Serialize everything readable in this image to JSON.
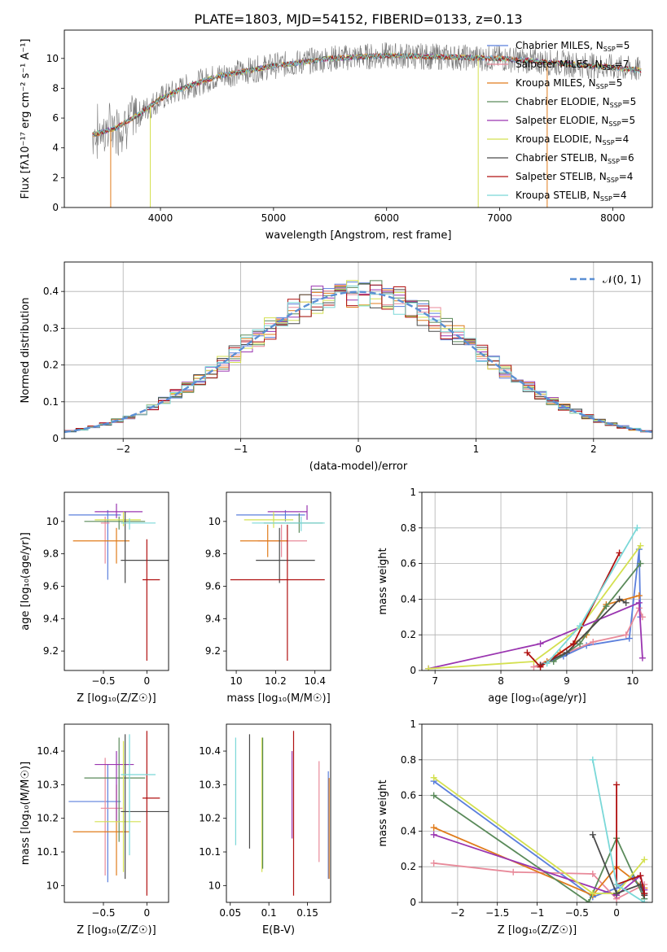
{
  "figure_title": "PLATE=1803, MJD=54152, FIBERID=0133, z=0.13",
  "colors": {
    "Chabrier MILES": "#5b7fdc",
    "Salpeter MILES": "#e88a9a",
    "Kroupa MILES": "#e07c1c",
    "Chabrier ELODIE": "#5a8a5a",
    "Salpeter ELODIE": "#9a35b0",
    "Kroupa ELODIE": "#d4e050",
    "Chabrier STELIB": "#4a4a4a",
    "Salpeter STELIB": "#b01010",
    "Kroupa STELIB": "#7ad8d8"
  },
  "chart_data": [
    {
      "type": "line",
      "id": "spectrum",
      "xlabel": "wavelength [Angstrom, rest frame]",
      "ylabel": "Flux [fλ10⁻¹⁷ erg cm⁻² s⁻¹ A⁻¹]",
      "xlim": [
        3150,
        8350
      ],
      "ylim": [
        0,
        11.9
      ],
      "xticks": [
        4000,
        5000,
        6000,
        7000,
        8000
      ],
      "yticks": [
        0,
        2,
        4,
        6,
        8,
        10
      ],
      "grid": false,
      "legend_position": "right",
      "legend": [
        {
          "name": "Chabrier MILES",
          "nssp": "5"
        },
        {
          "name": "Salpeter MILES",
          "nssp": "7"
        },
        {
          "name": "Kroupa MILES",
          "nssp": "5"
        },
        {
          "name": "Chabrier ELODIE",
          "nssp": "5"
        },
        {
          "name": "Salpeter ELODIE",
          "nssp": "5"
        },
        {
          "name": "Kroupa ELODIE",
          "nssp": "4"
        },
        {
          "name": "Chabrier STELIB",
          "nssp": "6"
        },
        {
          "name": "Salpeter STELIB",
          "nssp": "4"
        },
        {
          "name": "Kroupa STELIB",
          "nssp": "4"
        }
      ],
      "continuum": {
        "x": [
          3400,
          3600,
          3800,
          4000,
          4200,
          4500,
          5000,
          5500,
          6000,
          6500,
          7000,
          7500,
          8000,
          8250
        ],
        "y": [
          4.9,
          5.3,
          6.2,
          7.3,
          8.0,
          8.8,
          9.5,
          10.0,
          10.2,
          10.1,
          10.0,
          9.7,
          9.4,
          9.2
        ]
      }
    },
    {
      "type": "histogram",
      "id": "residuals",
      "xlabel": "(data-model)/error",
      "ylabel": "Normed distribution",
      "xlim": [
        -2.5,
        2.5
      ],
      "ylim": [
        0,
        0.48
      ],
      "xticks": [
        -2,
        -1,
        0,
        1,
        2
      ],
      "yticks": [
        0.0,
        0.1,
        0.2,
        0.3,
        0.4
      ],
      "grid": true,
      "reference_curve": {
        "label": "𝒩(0, 1)",
        "mean": 0,
        "sigma": 1
      },
      "bin_edges_start": -2.5,
      "bin_width": 0.1
    },
    {
      "type": "errorbar",
      "id": "age-vs-Z",
      "xlabel": "Z [log₁₀(Z/Z☉)]",
      "ylabel": "age  [log₁₀(age/yr)]",
      "xlim": [
        -0.95,
        0.25
      ],
      "ylim": [
        9.08,
        10.18
      ],
      "xticks": [
        -0.5,
        0.0
      ],
      "yticks": [
        9.2,
        9.4,
        9.6,
        9.8,
        10.0
      ],
      "points": [
        {
          "series": "Chabrier MILES",
          "x": -0.45,
          "xerr": [
            0.45,
            0.15
          ],
          "y": 10.04,
          "yerr": [
            0.4,
            0.03
          ]
        },
        {
          "series": "Salpeter MILES",
          "x": -0.48,
          "xerr": [
            0.05,
            0.05
          ],
          "y": 9.99,
          "yerr": [
            0.25,
            0.04
          ]
        },
        {
          "series": "Kroupa MILES",
          "x": -0.35,
          "xerr": [
            0.5,
            0.15
          ],
          "y": 9.88,
          "yerr": [
            0.14,
            0.08
          ]
        },
        {
          "series": "Chabrier ELODIE",
          "x": -0.32,
          "xerr": [
            0.4,
            0.3
          ],
          "y": 10.0,
          "yerr": [
            0.05,
            0.03
          ]
        },
        {
          "series": "Salpeter ELODIE",
          "x": -0.35,
          "xerr": [
            0.25,
            0.3
          ],
          "y": 10.06,
          "yerr": [
            0.04,
            0.05
          ]
        },
        {
          "series": "Kroupa ELODIE",
          "x": -0.27,
          "xerr": [
            0.33,
            0.2
          ],
          "y": 10.01,
          "yerr": [
            0.04,
            0.05
          ]
        },
        {
          "series": "Chabrier STELIB",
          "x": -0.25,
          "xerr": [
            0.05,
            0.5
          ],
          "y": 9.76,
          "yerr": [
            0.14,
            0.3
          ]
        },
        {
          "series": "Salpeter STELIB",
          "x": 0.0,
          "xerr": [
            0.05,
            0.15
          ],
          "y": 9.64,
          "yerr": [
            0.5,
            0.25
          ]
        },
        {
          "series": "Kroupa STELIB",
          "x": -0.2,
          "xerr": [
            0.1,
            0.3
          ],
          "y": 9.99,
          "yerr": [
            0.04,
            0.03
          ]
        }
      ]
    },
    {
      "type": "errorbar",
      "id": "age-vs-mass",
      "xlabel": "mass [log₁₀(M/M☉)]",
      "ylabel": "",
      "xlim": [
        9.95,
        10.48
      ],
      "ylim": [
        9.08,
        10.18
      ],
      "xticks": [
        10.0,
        10.2,
        10.4
      ],
      "yticks": [
        9.2,
        9.4,
        9.6,
        9.8,
        10.0
      ],
      "points": [
        {
          "series": "Chabrier MILES",
          "x": 10.25,
          "xerr": [
            0.25,
            0.1
          ],
          "y": 10.04,
          "yerr": [
            0.04,
            0.03
          ]
        },
        {
          "series": "Salpeter MILES",
          "x": 10.23,
          "xerr": [
            0.12,
            0.13
          ],
          "y": 9.88,
          "yerr": [
            0.1,
            0.1
          ]
        },
        {
          "series": "Kroupa MILES",
          "x": 10.16,
          "xerr": [
            0.14,
            0.1
          ],
          "y": 9.88,
          "yerr": [
            0.1,
            0.1
          ]
        },
        {
          "series": "Chabrier ELODIE",
          "x": 10.32,
          "xerr": [
            0.18,
            0.12
          ],
          "y": 9.99,
          "yerr": [
            0.06,
            0.06
          ]
        },
        {
          "series": "Salpeter ELODIE",
          "x": 10.36,
          "xerr": [
            0.2,
            0.0
          ],
          "y": 10.06,
          "yerr": [
            0.05,
            0.04
          ]
        },
        {
          "series": "Kroupa ELODIE",
          "x": 10.19,
          "xerr": [
            0.15,
            0.1
          ],
          "y": 10.01,
          "yerr": [
            0.05,
            0.05
          ]
        },
        {
          "series": "Chabrier STELIB",
          "x": 10.22,
          "xerr": [
            0.12,
            0.18
          ],
          "y": 9.76,
          "yerr": [
            0.14,
            0.2
          ]
        },
        {
          "series": "Salpeter STELIB",
          "x": 10.26,
          "xerr": [
            0.29,
            0.19
          ],
          "y": 9.64,
          "yerr": [
            0.5,
            0.34
          ]
        },
        {
          "series": "Kroupa STELIB",
          "x": 10.33,
          "xerr": [
            0.25,
            0.12
          ],
          "y": 9.99,
          "yerr": [
            0.05,
            0.04
          ]
        }
      ]
    },
    {
      "type": "line",
      "id": "mass-weight-vs-age",
      "xlabel": "age  [log₁₀(age/yr)]",
      "ylabel": "mass weight",
      "xlim": [
        6.8,
        10.3
      ],
      "ylim": [
        0,
        1.0
      ],
      "xticks": [
        7,
        8,
        9,
        10
      ],
      "yticks": [
        0.0,
        0.2,
        0.4,
        0.6,
        0.8,
        1.0
      ],
      "grid": true,
      "series": [
        {
          "name": "Chabrier MILES",
          "x": [
            8.6,
            8.95,
            9.3,
            9.95,
            10.1,
            10.12
          ],
          "y": [
            0.03,
            0.08,
            0.14,
            0.18,
            0.68,
            0.3
          ]
        },
        {
          "name": "Salpeter MILES",
          "x": [
            8.5,
            8.8,
            9.4,
            9.9,
            10.1,
            10.15
          ],
          "y": [
            0.02,
            0.07,
            0.16,
            0.2,
            0.35,
            0.3
          ]
        },
        {
          "name": "Kroupa MILES",
          "x": [
            8.7,
            8.9,
            9.3,
            9.6,
            10.1
          ],
          "y": [
            0.05,
            0.1,
            0.2,
            0.37,
            0.42
          ]
        },
        {
          "name": "Chabrier ELODIE",
          "x": [
            8.8,
            9.2,
            9.6,
            10.12
          ],
          "y": [
            0.05,
            0.15,
            0.36,
            0.6
          ]
        },
        {
          "name": "Salpeter ELODIE",
          "x": [
            6.9,
            8.6,
            10.1,
            10.15
          ],
          "y": [
            0.01,
            0.15,
            0.38,
            0.07
          ]
        },
        {
          "name": "Kroupa ELODIE",
          "x": [
            6.9,
            8.5,
            9.2,
            10.12
          ],
          "y": [
            0.01,
            0.05,
            0.24,
            0.7
          ]
        },
        {
          "name": "Chabrier STELIB",
          "x": [
            8.6,
            9.0,
            9.8,
            9.9
          ],
          "y": [
            0.03,
            0.1,
            0.4,
            0.38
          ]
        },
        {
          "name": "Salpeter STELIB",
          "x": [
            8.4,
            8.6,
            9.1,
            9.8
          ],
          "y": [
            0.1,
            0.02,
            0.15,
            0.66
          ]
        },
        {
          "name": "Kroupa STELIB",
          "x": [
            8.7,
            9.2,
            10.07
          ],
          "y": [
            0.04,
            0.25,
            0.8
          ]
        }
      ]
    },
    {
      "type": "errorbar",
      "id": "mass-vs-Z",
      "xlabel": "Z [log₁₀(Z/Z☉)]",
      "ylabel": "mass [log₁₀(M/M☉)]",
      "xlim": [
        -0.95,
        0.25
      ],
      "ylim": [
        9.95,
        10.48
      ],
      "xticks": [
        -0.5,
        0.0
      ],
      "yticks": [
        10.0,
        10.1,
        10.2,
        10.3,
        10.4
      ],
      "points": [
        {
          "series": "Chabrier MILES",
          "x": -0.45,
          "xerr": [
            0.45,
            0.15
          ],
          "y": 10.25,
          "yerr": [
            0.24,
            0.11
          ]
        },
        {
          "series": "Salpeter MILES",
          "x": -0.48,
          "xerr": [
            0.05,
            0.2
          ],
          "y": 10.23,
          "yerr": [
            0.2,
            0.15
          ]
        },
        {
          "series": "Kroupa MILES",
          "x": -0.35,
          "xerr": [
            0.5,
            0.15
          ],
          "y": 10.16,
          "yerr": [
            0.13,
            0.14
          ]
        },
        {
          "series": "Chabrier ELODIE",
          "x": -0.32,
          "xerr": [
            0.4,
            0.3
          ],
          "y": 10.32,
          "yerr": [
            0.19,
            0.12
          ]
        },
        {
          "series": "Salpeter ELODIE",
          "x": -0.35,
          "xerr": [
            0.25,
            0.2
          ],
          "y": 10.36,
          "yerr": [
            0.17,
            0.04
          ]
        },
        {
          "series": "Kroupa ELODIE",
          "x": -0.27,
          "xerr": [
            0.33,
            0.2
          ],
          "y": 10.19,
          "yerr": [
            0.15,
            0.24
          ]
        },
        {
          "series": "Chabrier STELIB",
          "x": -0.25,
          "xerr": [
            0.05,
            0.5
          ],
          "y": 10.22,
          "yerr": [
            0.2,
            0.23
          ]
        },
        {
          "series": "Salpeter STELIB",
          "x": 0.0,
          "xerr": [
            0.05,
            0.15
          ],
          "y": 10.26,
          "yerr": [
            0.29,
            0.2
          ]
        },
        {
          "series": "Kroupa STELIB",
          "x": -0.2,
          "xerr": [
            0.1,
            0.3
          ],
          "y": 10.33,
          "yerr": [
            0.24,
            0.12
          ]
        }
      ]
    },
    {
      "type": "errorbar",
      "id": "mass-vs-ebv",
      "xlabel": "E(B-V)",
      "ylabel": "",
      "xlim": [
        0.045,
        0.18
      ],
      "ylim": [
        9.95,
        10.48
      ],
      "xticks": [
        0.05,
        0.1,
        0.15
      ],
      "yticks": [
        10.0,
        10.1,
        10.2,
        10.3,
        10.4
      ],
      "points": [
        {
          "series": "Kroupa STELIB",
          "x": 0.057,
          "y": 10.29,
          "yerr": [
            0.17,
            0.15
          ]
        },
        {
          "series": "Chabrier STELIB",
          "x": 0.075,
          "y": 10.28,
          "yerr": [
            0.17,
            0.17
          ]
        },
        {
          "series": "Kroupa ELODIE",
          "x": 0.091,
          "y": 10.24,
          "yerr": [
            0.2,
            0.2
          ]
        },
        {
          "series": "Chabrier ELODIE",
          "x": 0.092,
          "y": 10.25,
          "yerr": [
            0.2,
            0.19
          ]
        },
        {
          "series": "Salpeter ELODIE",
          "x": 0.13,
          "y": 10.27,
          "yerr": [
            0.13,
            0.13
          ]
        },
        {
          "series": "Salpeter STELIB",
          "x": 0.132,
          "y": 10.26,
          "yerr": [
            0.29,
            0.2
          ]
        },
        {
          "series": "Salpeter MILES",
          "x": 0.165,
          "y": 10.22,
          "yerr": [
            0.15,
            0.15
          ]
        },
        {
          "series": "Chabrier MILES",
          "x": 0.177,
          "y": 10.18,
          "yerr": [
            0.16,
            0.16
          ]
        },
        {
          "series": "Kroupa MILES",
          "x": 0.178,
          "y": 10.17,
          "yerr": [
            0.15,
            0.15
          ]
        }
      ]
    },
    {
      "type": "line",
      "id": "mass-weight-vs-Z",
      "xlabel": "Z [log₁₀(Z/Z☉)]",
      "ylabel": "mass weight",
      "xlim": [
        -2.45,
        0.45
      ],
      "ylim": [
        0,
        1.0
      ],
      "xticks": [
        -2.0,
        -1.5,
        -1.0,
        -0.5,
        0.0
      ],
      "yticks": [
        0.0,
        0.2,
        0.4,
        0.6,
        0.8,
        1.0
      ],
      "grid": true,
      "series": [
        {
          "name": "Chabrier MILES",
          "x": [
            -2.3,
            -0.3,
            0.0,
            0.2,
            0.35
          ],
          "y": [
            0.68,
            0.03,
            0.08,
            0.14,
            0.05
          ]
        },
        {
          "name": "Salpeter MILES",
          "x": [
            -2.3,
            -1.3,
            -0.3,
            0.0,
            0.35
          ],
          "y": [
            0.22,
            0.17,
            0.16,
            0.02,
            0.1
          ]
        },
        {
          "name": "Kroupa MILES",
          "x": [
            -2.3,
            -0.3,
            0.0,
            0.35
          ],
          "y": [
            0.42,
            0.04,
            0.2,
            0.08
          ]
        },
        {
          "name": "Chabrier ELODIE",
          "x": [
            -2.3,
            -0.35,
            0.0,
            0.35
          ],
          "y": [
            0.6,
            0.0,
            0.36,
            0.02
          ]
        },
        {
          "name": "Salpeter ELODIE",
          "x": [
            -2.3,
            0.0,
            0.3,
            0.35
          ],
          "y": [
            0.38,
            0.04,
            0.15,
            0.07
          ]
        },
        {
          "name": "Kroupa ELODIE",
          "x": [
            -2.3,
            -0.3,
            0.0,
            0.35
          ],
          "y": [
            0.7,
            0.05,
            0.05,
            0.24
          ]
        },
        {
          "name": "Chabrier STELIB",
          "x": [
            -0.3,
            0.0,
            0.3,
            0.35
          ],
          "y": [
            0.38,
            0.05,
            0.1,
            0.04
          ]
        },
        {
          "name": "Salpeter STELIB",
          "x": [
            0.0,
            0.0,
            0.3,
            0.35
          ],
          "y": [
            0.66,
            0.1,
            0.15,
            0.05
          ]
        },
        {
          "name": "Kroupa STELIB",
          "x": [
            -0.3,
            0.0,
            0.35
          ],
          "y": [
            0.8,
            0.1,
            0.0
          ]
        }
      ]
    }
  ]
}
